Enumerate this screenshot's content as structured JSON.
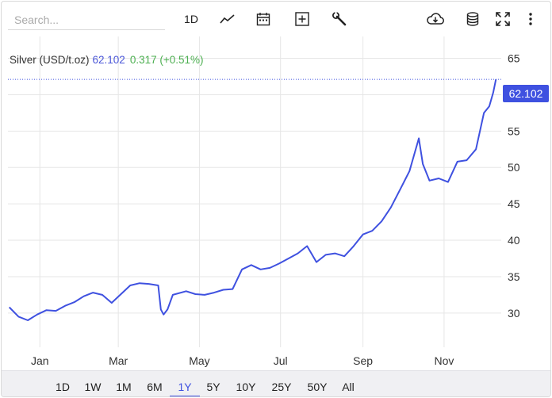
{
  "search": {
    "placeholder": "Search..."
  },
  "toolbar": {
    "period_label": "1D",
    "icons": [
      "line-chart-icon",
      "calendar-icon",
      "add-indicator-icon",
      "wrench-icon",
      "cloud-download-icon",
      "database-icon",
      "fullscreen-icon",
      "more-vertical-icon"
    ]
  },
  "legend": {
    "name": "Silver (USD/t.oz)",
    "price": "62.102",
    "change": "0.317 (+0.51%)"
  },
  "price_tag": "62.102",
  "colors": {
    "line": "#3f51e0",
    "price_tag_bg": "#3f51e0",
    "change_positive": "#4caf50",
    "grid": "#e6e6e6",
    "range_bar_bg": "#f0f0f3"
  },
  "chart_data": {
    "type": "line",
    "series": [
      {
        "name": "Silver (USD/t.oz)",
        "x": [
          "2024-12-09",
          "2024-12-16",
          "2024-12-23",
          "2024-12-30",
          "2025-01-06",
          "2025-01-13",
          "2025-01-20",
          "2025-01-27",
          "2025-02-03",
          "2025-02-10",
          "2025-02-17",
          "2025-02-24",
          "2025-03-03",
          "2025-03-10",
          "2025-03-17",
          "2025-03-24",
          "2025-03-31",
          "2025-04-02",
          "2025-04-04",
          "2025-04-07",
          "2025-04-11",
          "2025-04-21",
          "2025-04-28",
          "2025-05-05",
          "2025-05-12",
          "2025-05-19",
          "2025-05-26",
          "2025-06-02",
          "2025-06-09",
          "2025-06-16",
          "2025-06-23",
          "2025-06-30",
          "2025-07-07",
          "2025-07-14",
          "2025-07-21",
          "2025-07-28",
          "2025-08-04",
          "2025-08-11",
          "2025-08-18",
          "2025-08-25",
          "2025-09-01",
          "2025-09-08",
          "2025-09-15",
          "2025-09-22",
          "2025-09-29",
          "2025-10-06",
          "2025-10-13",
          "2025-10-16",
          "2025-10-21",
          "2025-10-28",
          "2025-11-04",
          "2025-11-11",
          "2025-11-18",
          "2025-11-25",
          "2025-12-01",
          "2025-12-05",
          "2025-12-08",
          "2025-12-10"
        ],
        "values": [
          30.8,
          29.5,
          29.0,
          29.8,
          30.4,
          30.3,
          31.0,
          31.5,
          32.3,
          32.8,
          32.5,
          31.4,
          32.6,
          33.8,
          34.1,
          34.0,
          33.8,
          30.5,
          29.8,
          30.5,
          32.5,
          33.0,
          32.6,
          32.5,
          32.8,
          33.2,
          33.3,
          36.0,
          36.6,
          36.0,
          36.2,
          36.8,
          37.5,
          38.2,
          39.2,
          37.0,
          38.0,
          38.2,
          37.8,
          39.2,
          40.8,
          41.3,
          42.6,
          44.5,
          47.0,
          49.5,
          54.0,
          50.5,
          48.2,
          48.5,
          48.0,
          50.8,
          51.0,
          52.5,
          57.5,
          58.4,
          60.3,
          62.102
        ]
      }
    ],
    "x_ticks": [
      "Jan",
      "Mar",
      "May",
      "Jul",
      "Sep",
      "Nov"
    ],
    "y_ticks": [
      30,
      35,
      40,
      45,
      50,
      55,
      60,
      65
    ],
    "ylim": [
      25.3,
      68
    ],
    "xlim": [
      "2024-12-08",
      "2025-12-14"
    ],
    "y_axis_position": "right",
    "grid": true,
    "last_value": 62.102
  },
  "ranges": {
    "items": [
      "1D",
      "1W",
      "1M",
      "6M",
      "1Y",
      "5Y",
      "10Y",
      "25Y",
      "50Y",
      "All"
    ],
    "active": "1Y"
  }
}
